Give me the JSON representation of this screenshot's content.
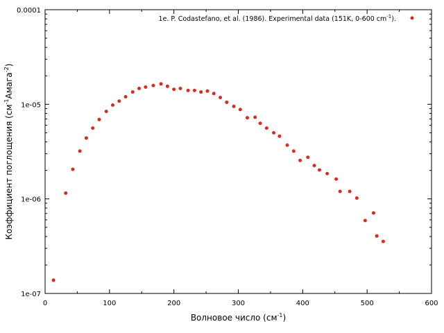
{
  "chart_data": {
    "type": "scatter",
    "title": "",
    "xlabel": "Волновое число (см",
    "xlabel_sup": "-1",
    "xlabel_end": ")",
    "ylabel": "Коэффициент поглощения (см",
    "ylabel_sup1": "-1",
    "ylabel_mid": "Амага",
    "ylabel_sup2": "-2",
    "ylabel_end": ")",
    "xlim": [
      0,
      600
    ],
    "ylim": [
      1e-07,
      0.0001
    ],
    "yscale": "log",
    "grid": false,
    "legend_position": "top-right",
    "x_ticks": [
      "0",
      "100",
      "200",
      "300",
      "400",
      "500",
      "600"
    ],
    "y_ticks": [
      "1e-07",
      "1e-06",
      "1e-05",
      "0.0001"
    ],
    "colors": {
      "series": "#d62d20",
      "axis": "#000000"
    },
    "series": [
      {
        "name": "1e. P. Codastefano, et al. (1986). Experimental data (151K, 0-600 cm",
        "name_sup": "-1",
        "name_end": ").",
        "x": [
          13,
          32,
          43,
          54,
          64,
          74,
          84,
          95,
          105,
          115,
          125,
          136,
          146,
          156,
          168,
          180,
          190,
          200,
          210,
          222,
          232,
          242,
          252,
          262,
          272,
          282,
          293,
          303,
          314,
          326,
          334,
          344,
          355,
          364,
          376,
          386,
          396,
          408,
          418,
          426,
          438,
          452,
          458,
          473,
          484,
          497,
          510,
          515,
          525
        ],
        "y": [
          1.38e-07,
          1.15e-06,
          2.05e-06,
          3.2e-06,
          4.4e-06,
          5.6e-06,
          6.9e-06,
          8.4e-06,
          9.8e-06,
          1.08e-05,
          1.2e-05,
          1.35e-05,
          1.47e-05,
          1.52e-05,
          1.58e-05,
          1.64e-05,
          1.55e-05,
          1.44e-05,
          1.47e-05,
          1.4e-05,
          1.4e-05,
          1.35e-05,
          1.38e-05,
          1.3e-05,
          1.18e-05,
          1.05e-05,
          9.5e-06,
          8.8e-06,
          7.2e-06,
          7.3e-06,
          6.3e-06,
          5.6e-06,
          5e-06,
          4.6e-06,
          3.7e-06,
          3.2e-06,
          2.55e-06,
          2.75e-06,
          2.25e-06,
          2.02e-06,
          1.85e-06,
          1.62e-06,
          1.2e-06,
          1.2e-06,
          1.02e-06,
          5.9e-07,
          7.1e-07,
          4.05e-07,
          3.55e-07
        ]
      }
    ]
  }
}
